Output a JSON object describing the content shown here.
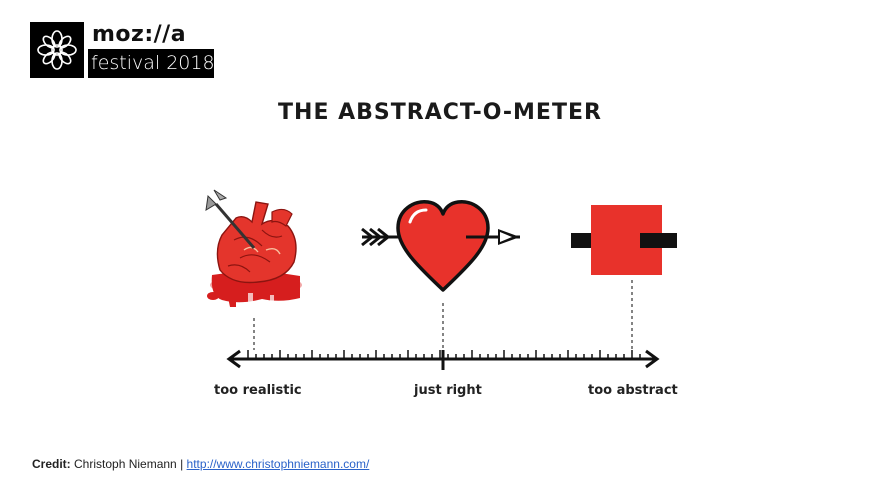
{
  "logo": {
    "wordmark": "moz://a",
    "event": "festival 2018"
  },
  "title": "THE ABSTRACT-O-METER",
  "scale": {
    "labels": {
      "left": "too realistic",
      "middle": "just right",
      "right": "too abstract"
    }
  },
  "icons": {
    "left": "anatomical-heart-icon",
    "middle": "cartoon-heart-icon",
    "right": "abstract-square-icon"
  },
  "colors": {
    "heart_red": "#e8322b",
    "blood_red": "#d61e1e",
    "text": "#1a1a1a",
    "link": "#2a62c9"
  },
  "credit": {
    "label": "Credit:",
    "author": "Christoph Niemann",
    "separator": "|",
    "url": "http://www.christophniemann.com/"
  }
}
